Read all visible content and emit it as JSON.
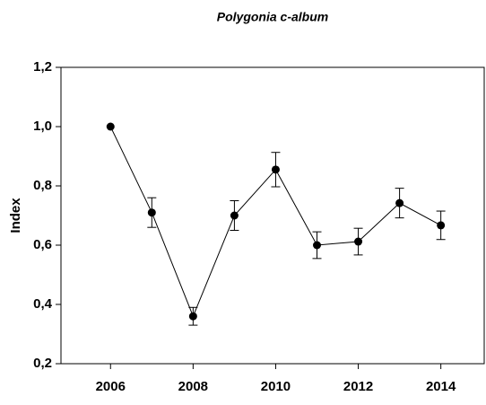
{
  "chart_data": {
    "type": "line",
    "title": "Polygonia c-album",
    "ylabel": "Index",
    "x": [
      2006,
      2007,
      2008,
      2009,
      2010,
      2011,
      2012,
      2013,
      2014
    ],
    "series": [
      {
        "name": "Index",
        "color": "#000000",
        "values": [
          1.0,
          0.71,
          0.36,
          0.7,
          0.855,
          0.6,
          0.612,
          0.742,
          0.667
        ],
        "errors": [
          0,
          0.05,
          0.03,
          0.05,
          0.058,
          0.045,
          0.045,
          0.05,
          0.048
        ]
      }
    ],
    "xlim": [
      2004.8,
      2015.05
    ],
    "xticks": [
      2006,
      2008,
      2010,
      2012,
      2014
    ],
    "ylim": [
      0.2,
      1.2
    ],
    "yticks": [
      {
        "value": 0.2,
        "label": "0,2"
      },
      {
        "value": 0.4,
        "label": "0,4"
      },
      {
        "value": 0.6,
        "label": "0,6"
      },
      {
        "value": 0.8,
        "label": "0,8"
      },
      {
        "value": 1.0,
        "label": "1,0"
      },
      {
        "value": 1.2,
        "label": "1,2"
      }
    ],
    "grid": false
  }
}
